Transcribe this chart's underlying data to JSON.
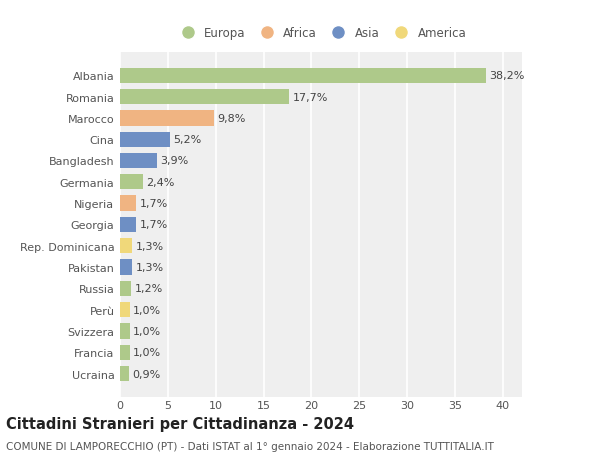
{
  "title": "Cittadini Stranieri per Cittadinanza - 2024",
  "subtitle": "COMUNE DI LAMPORECCHIO (PT) - Dati ISTAT al 1° gennaio 2024 - Elaborazione TUTTITALIA.IT",
  "categories": [
    "Albania",
    "Romania",
    "Marocco",
    "Cina",
    "Bangladesh",
    "Germania",
    "Nigeria",
    "Georgia",
    "Rep. Dominicana",
    "Pakistan",
    "Russia",
    "Perù",
    "Svizzera",
    "Francia",
    "Ucraina"
  ],
  "values": [
    38.2,
    17.7,
    9.8,
    5.2,
    3.9,
    2.4,
    1.7,
    1.7,
    1.3,
    1.3,
    1.2,
    1.0,
    1.0,
    1.0,
    0.9
  ],
  "labels": [
    "38,2%",
    "17,7%",
    "9,8%",
    "5,2%",
    "3,9%",
    "2,4%",
    "1,7%",
    "1,7%",
    "1,3%",
    "1,3%",
    "1,2%",
    "1,0%",
    "1,0%",
    "1,0%",
    "0,9%"
  ],
  "colors": [
    "#aec98a",
    "#aec98a",
    "#f0b482",
    "#6e8fc4",
    "#6e8fc4",
    "#aec98a",
    "#f0b482",
    "#6e8fc4",
    "#f0d87a",
    "#6e8fc4",
    "#aec98a",
    "#f0d87a",
    "#aec98a",
    "#aec98a",
    "#aec98a"
  ],
  "legend": [
    {
      "label": "Europa",
      "color": "#aec98a"
    },
    {
      "label": "Africa",
      "color": "#f0b482"
    },
    {
      "label": "Asia",
      "color": "#6e8fc4"
    },
    {
      "label": "America",
      "color": "#f0d87a"
    }
  ],
  "xlim": [
    0,
    42
  ],
  "xticks": [
    0,
    5,
    10,
    15,
    20,
    25,
    30,
    35,
    40
  ],
  "background_color": "#ffffff",
  "plot_bg_color": "#efefef",
  "grid_color": "#ffffff",
  "bar_height": 0.72,
  "title_fontsize": 10.5,
  "subtitle_fontsize": 7.5,
  "tick_fontsize": 8,
  "label_fontsize": 8,
  "legend_fontsize": 8.5
}
